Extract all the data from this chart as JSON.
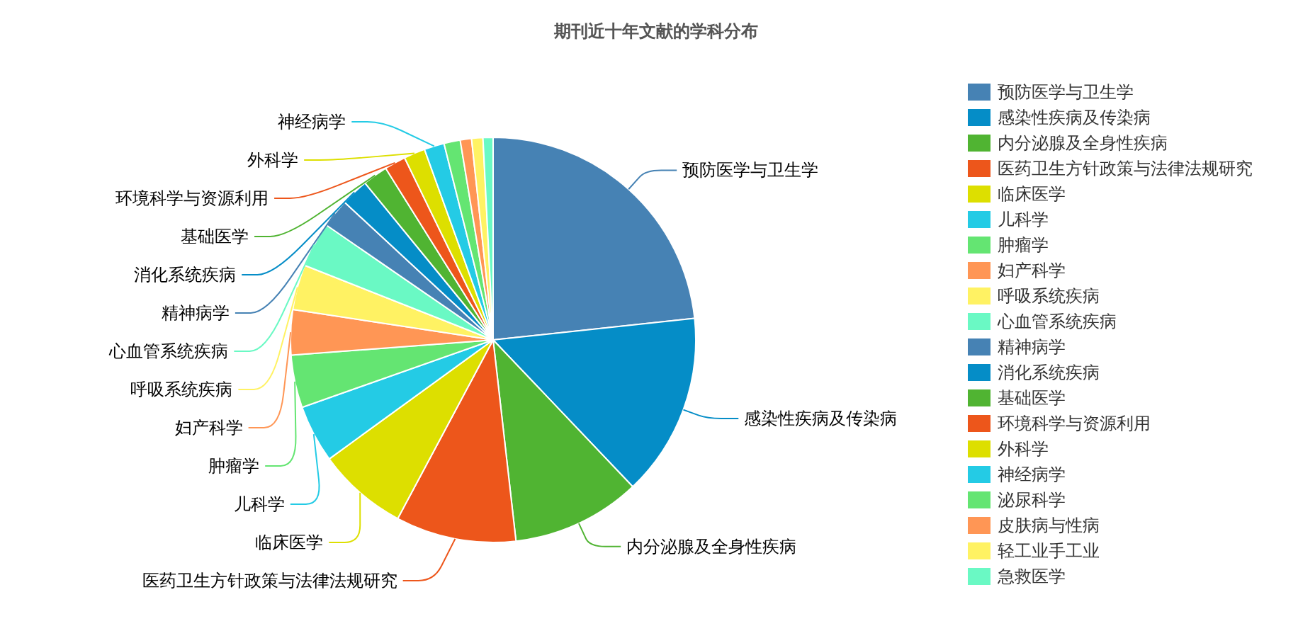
{
  "chart_data": {
    "type": "pie",
    "title": "期刊近十年文献的学科分布",
    "categories": [
      "预防医学与卫生学",
      "感染性疾病及传染病",
      "内分泌腺及全身性疾病",
      "医药卫生方针政策与法律法规研究",
      "临床医学",
      "儿科学",
      "肿瘤学",
      "妇产科学",
      "呼吸系统疾病",
      "心血管系统疾病",
      "精神病学",
      "消化系统疾病",
      "基础医学",
      "环境科学与资源利用",
      "外科学",
      "神经病学",
      "泌尿科学",
      "皮肤病与性病",
      "轻工业手工业",
      "急救医学"
    ],
    "values": [
      23.3,
      14.6,
      10.3,
      9.6,
      7.2,
      4.6,
      4.2,
      3.6,
      3.6,
      3.6,
      2.3,
      2.2,
      2.0,
      1.7,
      1.7,
      1.6,
      1.3,
      0.9,
      0.9,
      0.8
    ],
    "colors": [
      "#4682b4",
      "#058dc7",
      "#50b432",
      "#ed561b",
      "#dddf00",
      "#24cbe5",
      "#64e572",
      "#ff9655",
      "#fff263",
      "#6af9c4",
      "#4682b4",
      "#058dc7",
      "#50b432",
      "#ed561b",
      "#dddf00",
      "#24cbe5",
      "#64e572",
      "#ff9655",
      "#fff263",
      "#6af9c4"
    ],
    "legend": "right"
  }
}
